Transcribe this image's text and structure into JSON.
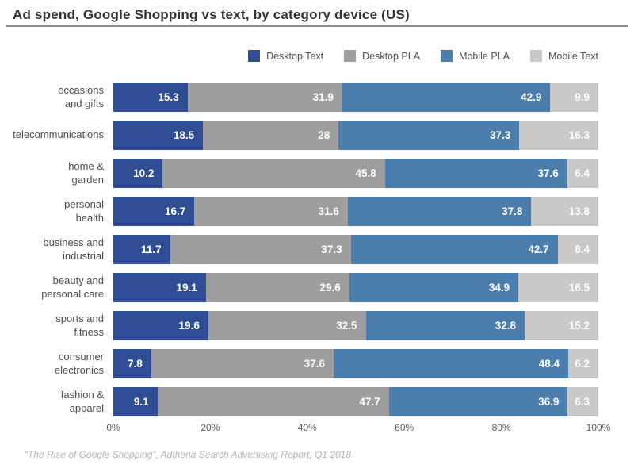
{
  "title": "Ad spend, Google Shopping vs text, by category device (US)",
  "footer": "“The Rise of Google Shopping”, Adthena Search Advertising Report, Q1 2018",
  "colors": {
    "desktop_text": "#2f4d92",
    "desktop_pla": "#9e9e9e",
    "mobile_pla": "#4b7dad",
    "mobile_text": "#c9c9c9",
    "title_text": "#333333",
    "divider": "#8e8e8e",
    "category_label": "#4d4d4d",
    "axis_label": "#595959",
    "footer_text": "#b3b3b3",
    "value_label": "#ffffff"
  },
  "chart_data": {
    "type": "bar",
    "orientation": "horizontal-stacked",
    "title": "Ad spend, Google Shopping vs text, by category device (US)",
    "categories": [
      "occasions\nand gifts",
      "telecommunications",
      "home &\ngarden",
      "personal\nhealth",
      "business and\nindustrial",
      "beauty and\npersonal care",
      "sports and\nfitness",
      "consumer\nelectronics",
      "fashion &\napparel"
    ],
    "series": [
      {
        "name": "Desktop Text",
        "color_key": "desktop_text",
        "values": [
          15.3,
          18.5,
          10.2,
          16.7,
          11.7,
          19.1,
          19.6,
          7.8,
          9.1
        ]
      },
      {
        "name": "Desktop PLA",
        "color_key": "desktop_pla",
        "values": [
          31.9,
          28,
          45.8,
          31.6,
          37.3,
          29.6,
          32.5,
          37.6,
          47.7
        ]
      },
      {
        "name": "Mobile PLA",
        "color_key": "mobile_pla",
        "values": [
          42.9,
          37.3,
          37.6,
          37.8,
          42.7,
          34.9,
          32.8,
          48.4,
          36.9
        ]
      },
      {
        "name": "Mobile Text",
        "color_key": "mobile_text",
        "values": [
          9.9,
          16.3,
          6.4,
          13.8,
          8.4,
          16.5,
          15.2,
          6.2,
          6.3
        ]
      }
    ],
    "x_ticks": [
      "0%",
      "20%",
      "40%",
      "60%",
      "80%",
      "100%"
    ],
    "xlim": [
      0,
      100
    ],
    "legend_position": "top-right",
    "grid": false
  }
}
